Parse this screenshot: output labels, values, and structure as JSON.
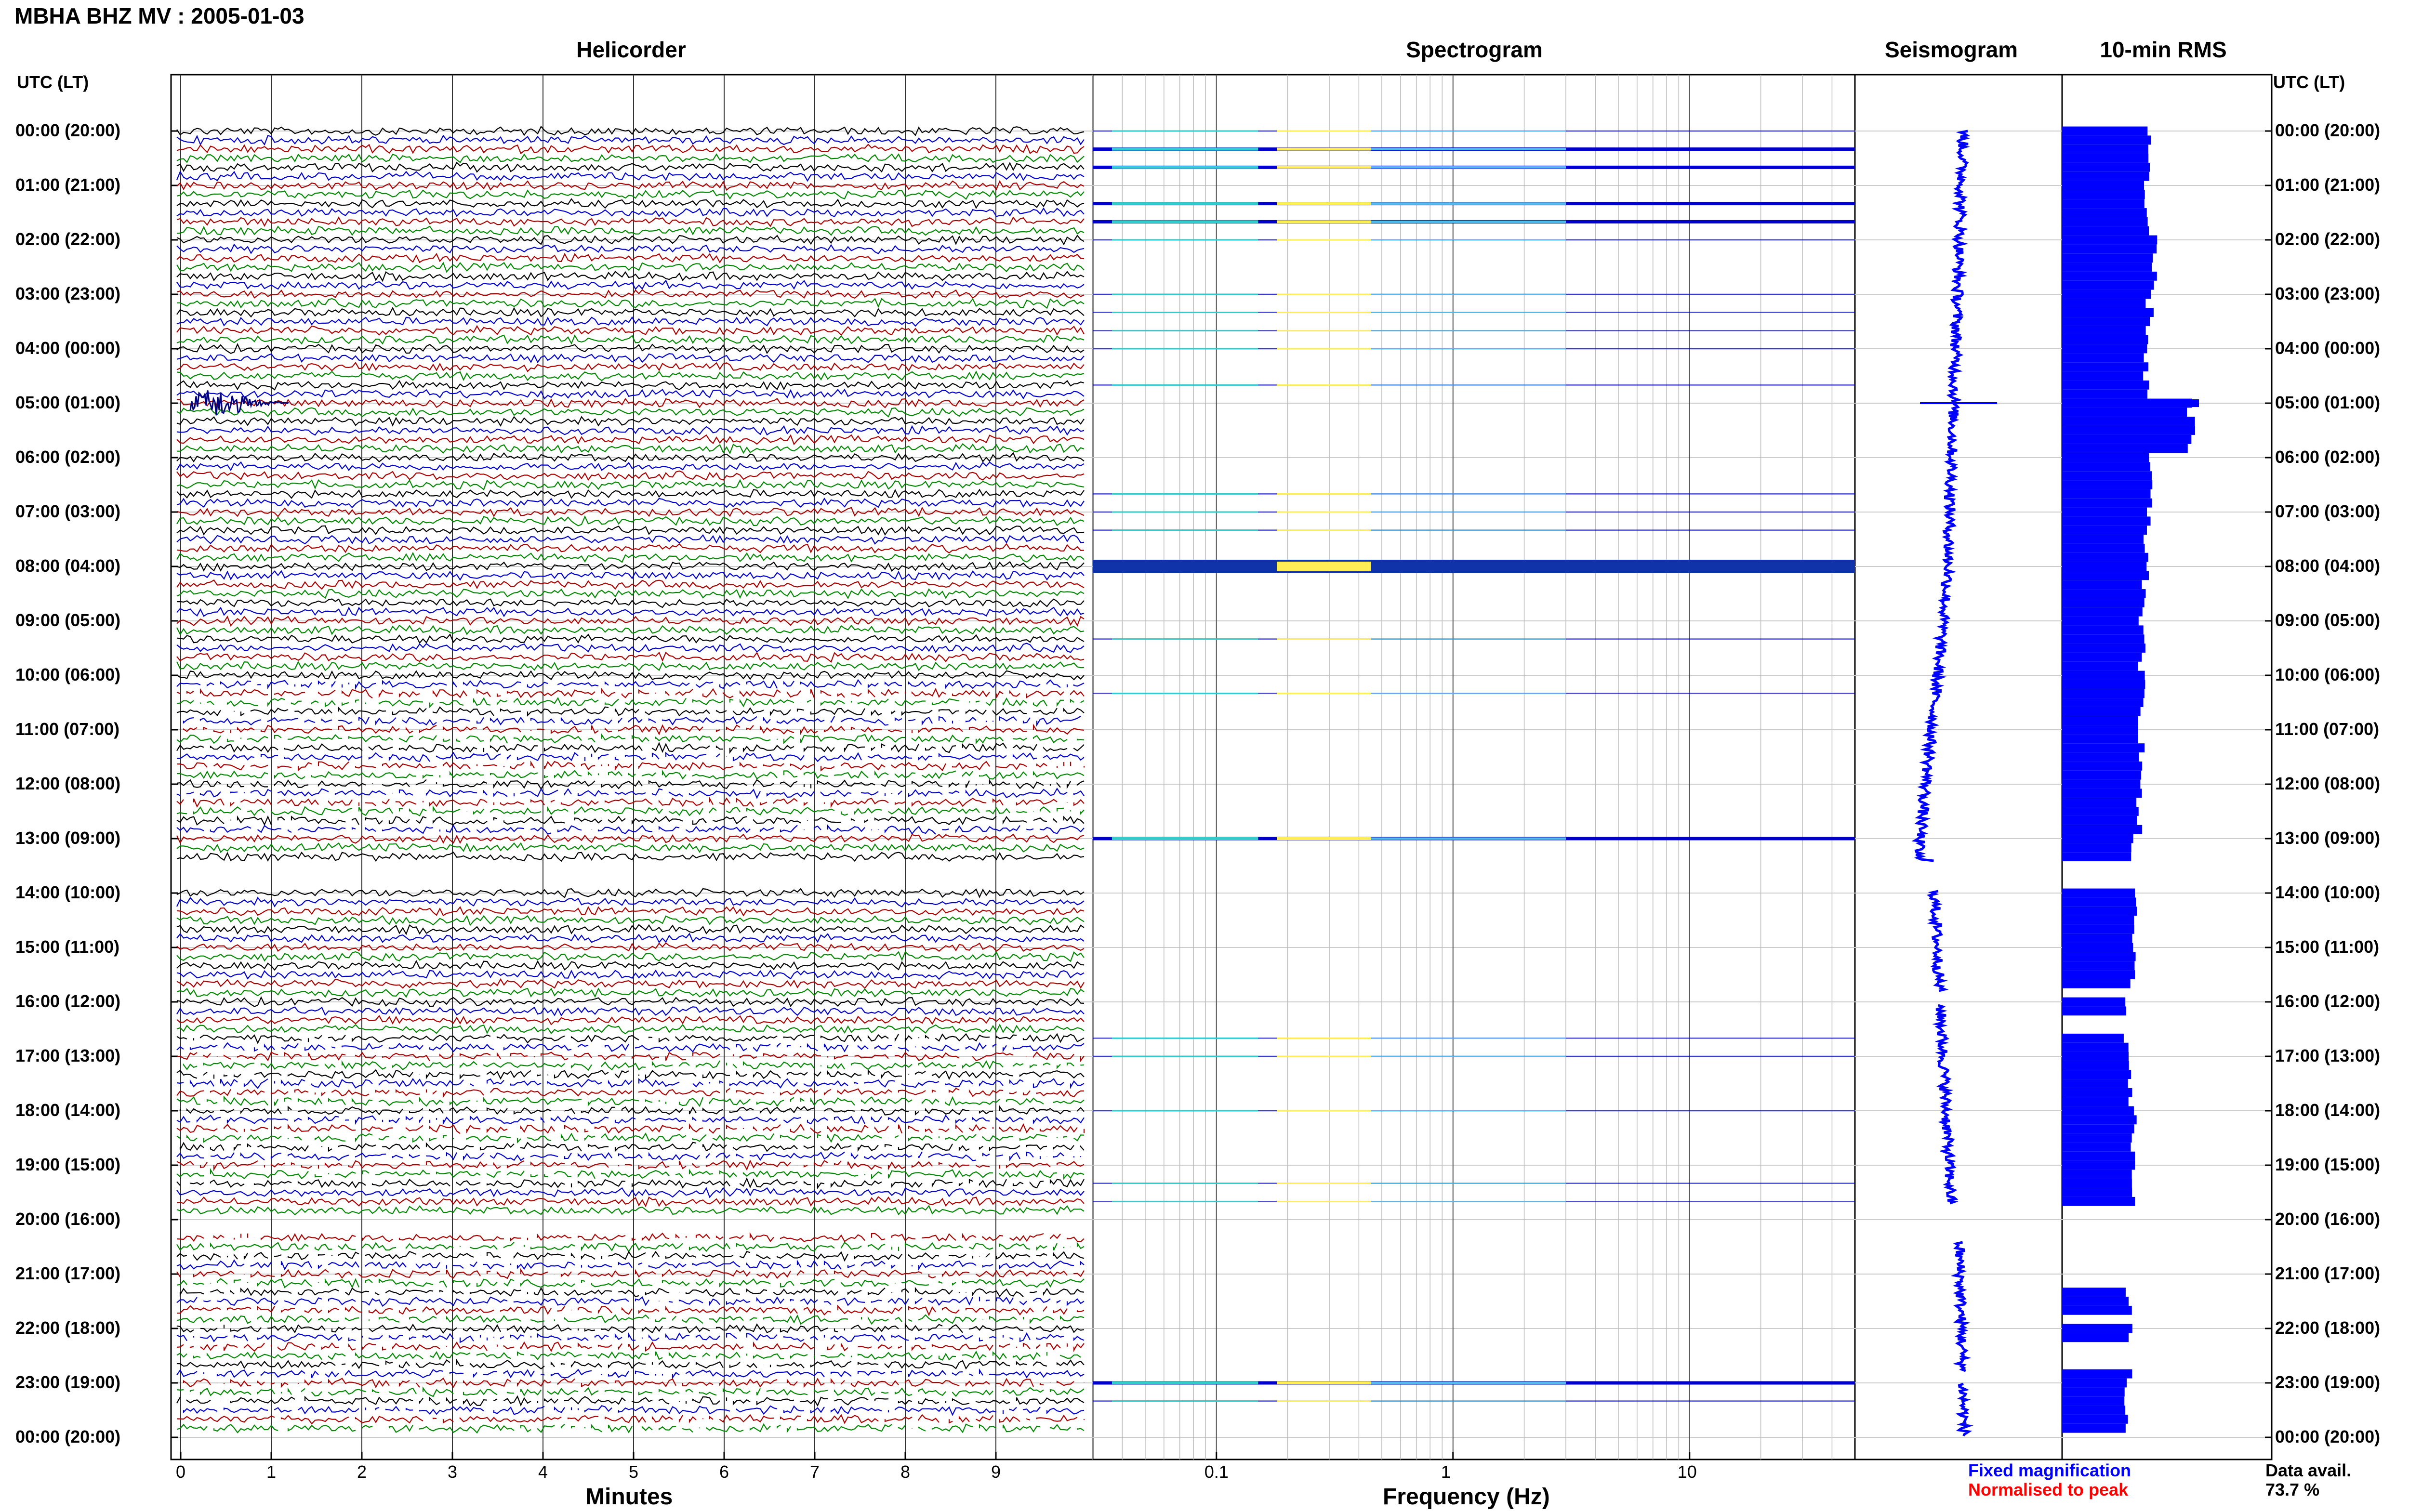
{
  "title": "MBHA BHZ MV : 2005-01-03",
  "panels": {
    "helicorder": "Helicorder",
    "spectrogram": "Spectrogram",
    "seismogram": "Seismogram",
    "rms": "10-min RMS"
  },
  "y_axis_header": "UTC (LT)",
  "time_labels": [
    "00:00 (20:00)",
    "01:00 (21:00)",
    "02:00 (22:00)",
    "03:00 (23:00)",
    "04:00 (00:00)",
    "05:00 (01:00)",
    "06:00 (02:00)",
    "07:00 (03:00)",
    "08:00 (04:00)",
    "09:00 (05:00)",
    "10:00 (06:00)",
    "11:00 (07:00)",
    "12:00 (08:00)",
    "13:00 (09:00)",
    "14:00 (10:00)",
    "15:00 (11:00)",
    "16:00 (12:00)",
    "17:00 (13:00)",
    "18:00 (14:00)",
    "19:00 (15:00)",
    "20:00 (16:00)",
    "21:00 (17:00)",
    "22:00 (18:00)",
    "23:00 (19:00)",
    "00:00 (20:00)"
  ],
  "helicorder_axis": {
    "xlabel": "Minutes",
    "ticks": [
      "0",
      "1",
      "2",
      "3",
      "4",
      "5",
      "6",
      "7",
      "8",
      "9"
    ],
    "xlim": [
      0,
      10
    ],
    "trace_colors": [
      "#000000",
      "#0000cc",
      "#aa0000",
      "#008800"
    ]
  },
  "spectrogram_axis": {
    "xlabel": "Frequency (Hz)",
    "ticks": [
      "0.1",
      "1",
      "10"
    ],
    "xlim": [
      0.03,
      50
    ],
    "scale": "log"
  },
  "legend": {
    "fixed": "Fixed magnification",
    "fixed_color": "#0000ff",
    "normalised": "Normalised to peak",
    "normalised_color": "#ff0000"
  },
  "data_availability": {
    "label": "Data avail.",
    "value": "73.7 %"
  },
  "chart_data": {
    "type": "bar",
    "description_series": "10-min RMS per hour, 0 = no data",
    "hours": [
      0,
      1,
      2,
      3,
      4,
      5,
      6,
      7,
      8,
      9,
      10,
      11,
      12,
      13,
      14,
      15,
      16,
      17,
      18,
      19,
      20,
      21,
      22,
      23
    ],
    "rms_relative": [
      0.55,
      0.52,
      0.57,
      0.55,
      0.53,
      0.8,
      0.55,
      0.53,
      0.52,
      0.5,
      0.5,
      0.5,
      0.48,
      0.45,
      0.45,
      0.45,
      0.4,
      0.43,
      0.45,
      0.45,
      0.0,
      0.42,
      0.43,
      0.4
    ],
    "data_gaps_hours": [
      13.4,
      16.2,
      19.6,
      20.0,
      21.8
    ],
    "strong_event_hour": 5,
    "spectrogram_strong_rows": [
      0.5,
      1.5,
      2.5,
      5.0,
      6.0,
      8.0,
      13.0,
      23.0
    ]
  }
}
